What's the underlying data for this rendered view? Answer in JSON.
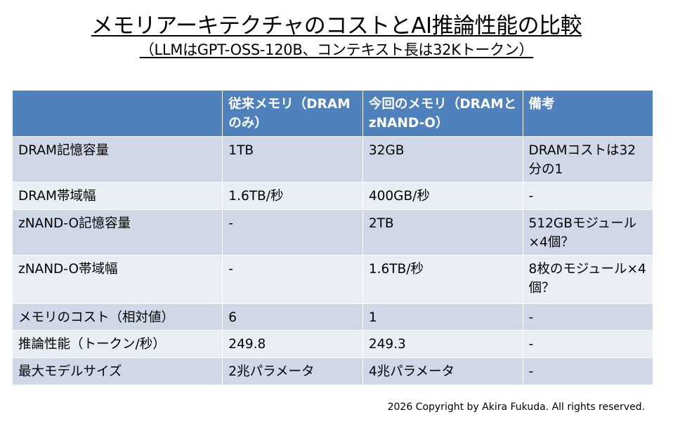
{
  "title": "メモリアーキテクチャのコストとAI推論性能の比較",
  "subtitle": "（LLMはGPT-OSS-120B、コンテキスト長は32Kトークン）",
  "table": {
    "headers": [
      "",
      "従来メモリ（DRAMのみ）",
      "今回のメモリ（DRAMとzNAND-O）",
      "備考"
    ],
    "rows": [
      [
        "DRAM記憶容量",
        "1TB",
        "32GB",
        "DRAMコストは32分の1"
      ],
      [
        "DRAM帯域幅",
        "1.6TB/秒",
        "400GB/秒",
        "-"
      ],
      [
        "zNAND-O記憶容量",
        "-",
        "2TB",
        "512GBモジュール×4個？"
      ],
      [
        "zNAND-O帯域幅",
        "-",
        "1.6TB/秒",
        "8枚のモジュール×4個？"
      ],
      [
        "メモリのコスト（相対値）",
        "6",
        "1",
        "-"
      ],
      [
        "推論性能（トークン/秒）",
        "249.8",
        "249.3",
        "-"
      ],
      [
        "最大モデルサイズ",
        "2兆パラメータ",
        "4兆パラメータ",
        "-"
      ]
    ]
  },
  "copyright": "2026 Copyright by Akira Fukuda. All rights reserved.",
  "colors": {
    "header_bg": "#4f81bd",
    "row_odd_bg": "#d0d8e8",
    "row_even_bg": "#e9edf4"
  }
}
